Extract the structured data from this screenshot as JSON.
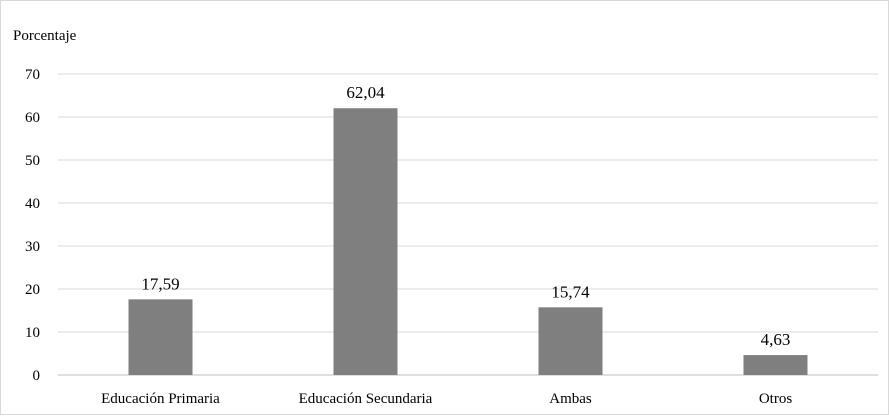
{
  "chart_data": {
    "type": "bar",
    "title": "",
    "xlabel": "",
    "ylabel": "Porcentaje",
    "categories": [
      "Educación Primaria",
      "Educación Secundaria",
      "Ambas",
      "Otros"
    ],
    "values": [
      17.59,
      62.04,
      15.74,
      4.63
    ],
    "data_labels": [
      "17,59",
      "62,04",
      "15,74",
      "4,63"
    ],
    "ylim": [
      0,
      70
    ],
    "yticks": [
      0,
      10,
      20,
      30,
      40,
      50,
      60,
      70
    ],
    "grid": true,
    "legend": "none",
    "colors": {
      "bar": "#7f7f7f",
      "grid": "#d9d9d9",
      "axis": "#bfbfbf"
    }
  }
}
